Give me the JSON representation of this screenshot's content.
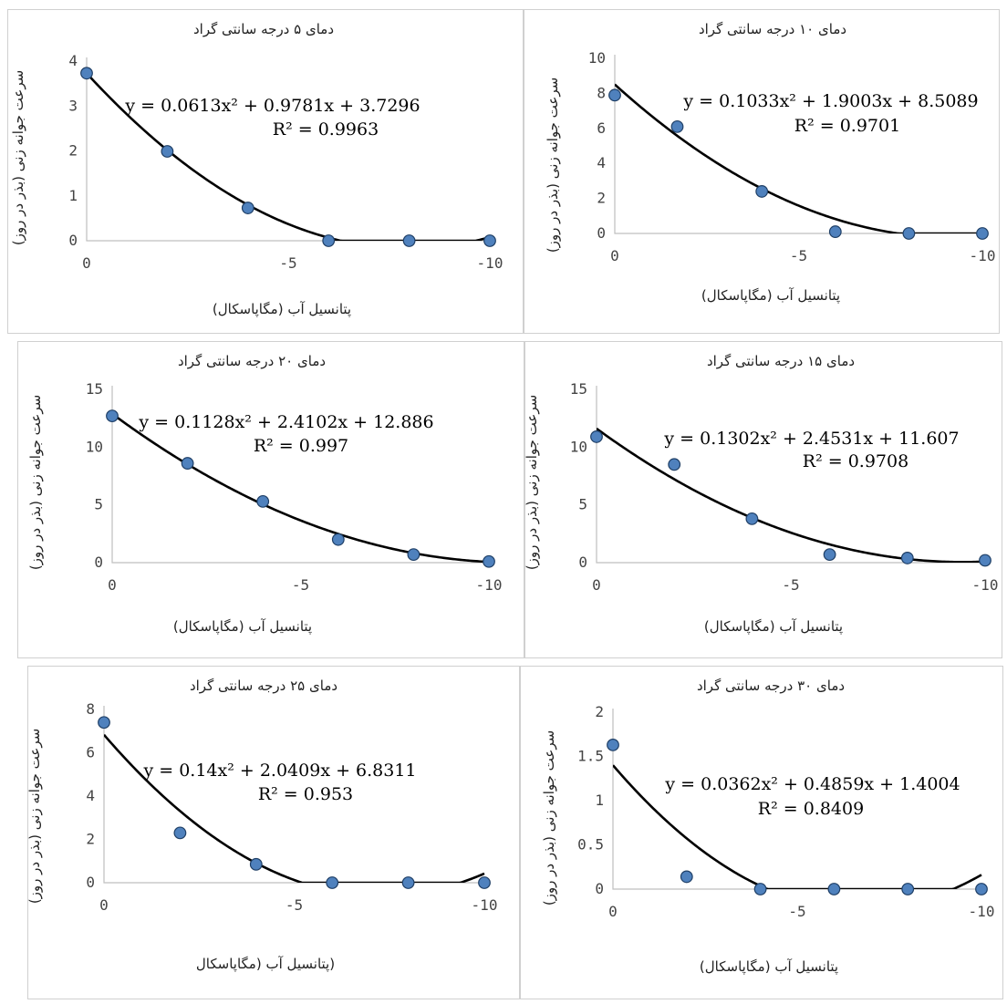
{
  "chart_data": [
    {
      "type": "scatter",
      "title": "دمای ۵ درجه سانتی گراد",
      "xlabel": "پتانسیل آب (مگاپاسکال)",
      "ylabel": "سرعت جوانه زنی (بذر در روز)",
      "xlim": [
        0,
        -10
      ],
      "ylim": [
        0,
        4
      ],
      "xticks": [
        "0",
        "-5",
        "-10"
      ],
      "yticks": [
        "0",
        "1",
        "2",
        "3",
        "4"
      ],
      "x": [
        0,
        -2,
        -4,
        -6,
        -8,
        -10
      ],
      "y": [
        3.73,
        1.99,
        0.73,
        0.0,
        0.0,
        0.0
      ],
      "trendline": {
        "a": 0.0613,
        "b": 0.9781,
        "c": 3.7296
      },
      "equation": "y = 0.0613x² + 0.9781x + 3.7296",
      "r2": "R² = 0.9963"
    },
    {
      "type": "scatter",
      "title": "دمای ۱۰ درجه سانتی گراد",
      "xlabel": "پتانسیل آب (مگاپاسکال)",
      "ylabel": "سرعت جوانه زنی (بذر در روز)",
      "xlim": [
        0,
        -10
      ],
      "ylim": [
        0,
        10
      ],
      "xticks": [
        "0",
        "-5",
        "-10"
      ],
      "yticks": [
        "0",
        "2",
        "4",
        "6",
        "8",
        "10"
      ],
      "x": [
        0,
        -1.7,
        -4,
        -6,
        -8,
        -10
      ],
      "y": [
        7.9,
        6.1,
        2.4,
        0.1,
        0.0,
        0.0
      ],
      "trendline": {
        "a": 0.1033,
        "b": 1.9003,
        "c": 8.5089
      },
      "equation": "y = 0.1033x² + 1.9003x + 8.5089",
      "r2": "R² = 0.9701"
    },
    {
      "type": "scatter",
      "title": "دمای ۲۰ درجه سانتی گراد",
      "xlabel": "پتانسیل آب (مگاپاسکال)",
      "ylabel": "سرعت جوانه زنی (بذر در روز)",
      "xlim": [
        0,
        -10
      ],
      "ylim": [
        0,
        15
      ],
      "xticks": [
        "0",
        "-5",
        "-10"
      ],
      "yticks": [
        "0",
        "5",
        "10",
        "15"
      ],
      "x": [
        0,
        -2,
        -4,
        -6,
        -8,
        -10
      ],
      "y": [
        12.7,
        8.6,
        5.3,
        2.0,
        0.7,
        0.1
      ],
      "trendline": {
        "a": 0.1128,
        "b": 2.4102,
        "c": 12.886
      },
      "equation": "y = 0.1128x² + 2.4102x + 12.886",
      "r2": "R² = 0.997"
    },
    {
      "type": "scatter",
      "title": "دمای ۱۵ درجه سانتی گراد",
      "xlabel": "پتانسیل آب (مگاپاسکال)",
      "ylabel": "سرعت جوانه زنی (بذر در روز)",
      "xlim": [
        0,
        -10
      ],
      "ylim": [
        0,
        15
      ],
      "xticks": [
        "0",
        "-5",
        "-10"
      ],
      "yticks": [
        "0",
        "5",
        "10",
        "15"
      ],
      "x": [
        0,
        -2,
        -4,
        -6,
        -8,
        -10
      ],
      "y": [
        10.9,
        8.5,
        3.8,
        0.7,
        0.4,
        0.2
      ],
      "trendline": {
        "a": 0.1302,
        "b": 2.4531,
        "c": 11.607
      },
      "equation": "y = 0.1302x² + 2.4531x + 11.607",
      "r2": "R² = 0.9708"
    },
    {
      "type": "scatter",
      "title": "دمای ۲۵ درجه سانتی گراد",
      "xlabel": "(پتانسیل آب (مگاپاسکال",
      "ylabel": "سرعت جوانه زنی (بذر در روز)",
      "xlim": [
        0,
        -10
      ],
      "ylim": [
        0,
        8
      ],
      "xticks": [
        "0",
        "-5",
        "-10"
      ],
      "yticks": [
        "0",
        "2",
        "4",
        "6",
        "8"
      ],
      "x": [
        0,
        -2,
        -4,
        -6,
        -8,
        -10
      ],
      "y": [
        7.4,
        2.3,
        0.85,
        0.0,
        0.0,
        0.0
      ],
      "trendline": {
        "a": 0.14,
        "b": 2.0409,
        "c": 6.8311
      },
      "equation": "y = 0.14x² + 2.0409x + 6.8311",
      "r2": "R² = 0.953"
    },
    {
      "type": "scatter",
      "title": "دمای ۳۰ درجه سانتی گراد",
      "xlabel": "پتانسیل آب (مگاپاسکال)",
      "ylabel": "سرعت جوانه زنی (بذر در روز)",
      "xlim": [
        0,
        -10
      ],
      "ylim": [
        0,
        2
      ],
      "xticks": [
        "0",
        "-5",
        "-10"
      ],
      "yticks": [
        "0",
        "0.5",
        "1",
        "1.5",
        "2"
      ],
      "x": [
        0,
        -2,
        -4,
        -6,
        -8,
        -10
      ],
      "y": [
        1.63,
        0.14,
        0.0,
        0.0,
        0.0,
        0.0
      ],
      "trendline": {
        "a": 0.0362,
        "b": 0.4859,
        "c": 1.4004
      },
      "equation": "y = 0.0362x² + 0.4859x + 1.4004",
      "r2": "R² = 0.8409"
    }
  ]
}
